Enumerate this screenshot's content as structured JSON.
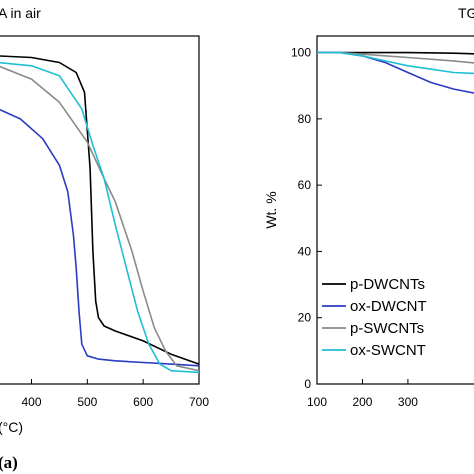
{
  "chart_data": [
    {
      "type": "line",
      "title": "A in air",
      "xlabel": "(°C)",
      "ylabel": "",
      "xlim": [
        340,
        700
      ],
      "ylim": [
        0,
        105
      ],
      "xticks": [
        "400",
        "500",
        "600",
        "700"
      ],
      "panel_label": "(a)",
      "series": [
        {
          "color": "#000000",
          "x": [
            340,
            400,
            450,
            480,
            495,
            505,
            510,
            515,
            520,
            530,
            550,
            600,
            650,
            700
          ],
          "y": [
            99,
            98.5,
            97,
            94,
            88,
            65,
            40,
            25,
            20,
            17.5,
            16,
            13,
            9,
            6
          ]
        },
        {
          "color": "#2a3cc4",
          "x": [
            340,
            380,
            420,
            450,
            465,
            475,
            480,
            485,
            490,
            500,
            520,
            550,
            600,
            650,
            700
          ],
          "y": [
            83,
            80,
            74,
            66,
            58,
            45,
            35,
            22,
            12,
            8.5,
            7.5,
            7,
            6.5,
            6,
            5.5
          ]
        },
        {
          "color": "#8a8a8a",
          "x": [
            340,
            400,
            450,
            500,
            530,
            550,
            580,
            600,
            620,
            640,
            660,
            700
          ],
          "y": [
            96,
            92,
            85,
            73,
            62,
            55,
            40,
            28,
            17,
            10,
            5.5,
            4
          ]
        },
        {
          "color": "#1fbfd6",
          "x": [
            340,
            400,
            450,
            490,
            510,
            530,
            550,
            570,
            590,
            610,
            630,
            650,
            700
          ],
          "y": [
            97,
            96,
            93,
            83,
            72,
            62,
            48,
            35,
            22,
            12,
            6,
            4,
            3.5
          ]
        }
      ]
    },
    {
      "type": "line",
      "title": "TG",
      "xlabel": "",
      "ylabel": "Wt. %",
      "xlim": [
        100,
        474
      ],
      "ylim": [
        0,
        105
      ],
      "xticks": [
        "100",
        "200",
        "300"
      ],
      "yticks": [
        "0",
        "20",
        "40",
        "60",
        "80",
        "100"
      ],
      "legend_position": "bottom-right",
      "series": [
        {
          "name": "p-DWCNTs",
          "color": "#000000",
          "x": [
            100,
            150,
            200,
            300,
            400,
            474
          ],
          "y": [
            100,
            100,
            100,
            100,
            99.8,
            99.5
          ]
        },
        {
          "name": "ox-DWCNT",
          "color": "#2a3cc4",
          "x": [
            100,
            150,
            200,
            250,
            300,
            350,
            400,
            474
          ],
          "y": [
            100,
            100,
            99,
            97,
            94,
            91,
            89,
            87
          ]
        },
        {
          "name": "p-SWCNTs",
          "color": "#8a8a8a",
          "x": [
            100,
            150,
            200,
            300,
            400,
            474
          ],
          "y": [
            100,
            100,
            99.5,
            98.5,
            97.5,
            96.5
          ]
        },
        {
          "name": "ox-SWCNT",
          "color": "#1fbfd6",
          "x": [
            100,
            150,
            200,
            250,
            300,
            350,
            400,
            474
          ],
          "y": [
            100,
            100,
            99,
            97.5,
            96,
            95,
            94,
            93.5
          ]
        }
      ]
    }
  ]
}
